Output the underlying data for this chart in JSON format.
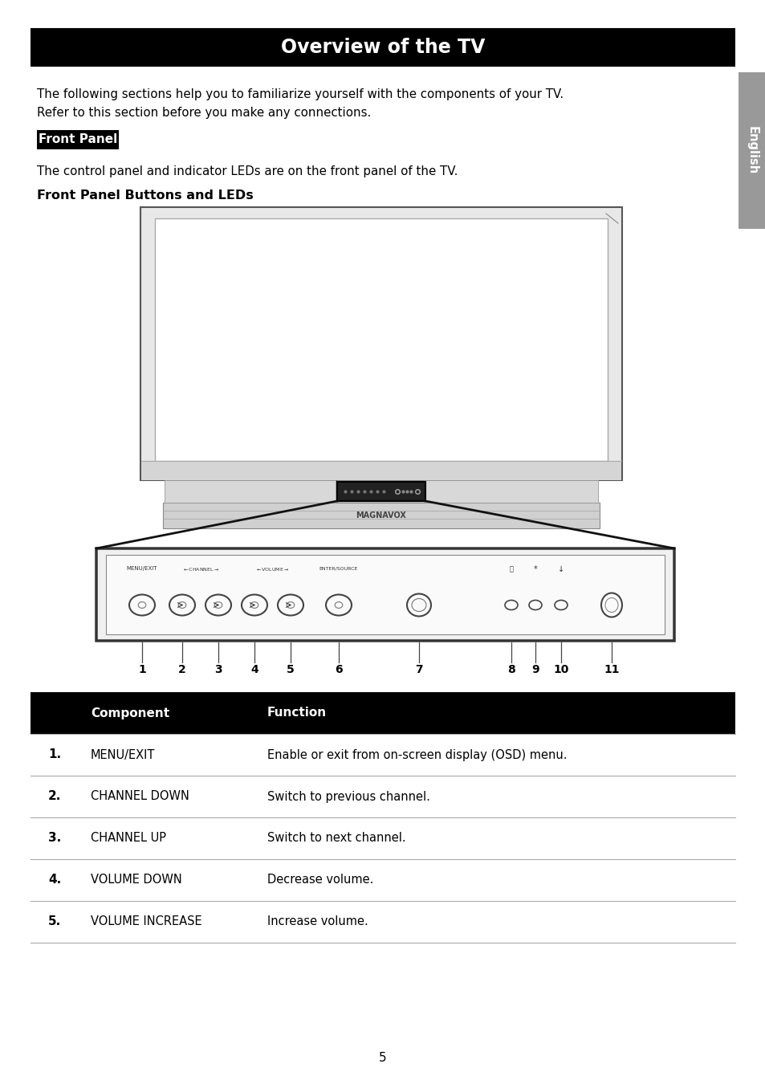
{
  "title": "Overview of the TV",
  "title_bg": "#000000",
  "title_color": "#ffffff",
  "page_bg": "#ffffff",
  "intro_line1": "The following sections help you to familiarize yourself with the components of your TV.",
  "intro_line2": "Refer to this section before you make any connections.",
  "section_label": "Front Panel",
  "section_label_bg": "#000000",
  "section_label_color": "#ffffff",
  "section_body": "The control panel and indicator LEDs are on the front panel of the TV.",
  "subsection_label": "Front Panel Buttons and LEDs",
  "english_tab_bg": "#999999",
  "english_tab_color": "#ffffff",
  "english_tab_text": "English",
  "table_header_bg": "#000000",
  "table_header_color": "#ffffff",
  "table_col1_header": "Component",
  "table_col2_header": "Function",
  "table_rows": [
    {
      "num": "1.",
      "component": "MENU/EXIT",
      "function": "Enable or exit from on-screen display (OSD) menu."
    },
    {
      "num": "2.",
      "component": "CHANNEL DOWN",
      "function": "Switch to previous channel."
    },
    {
      "num": "3.",
      "component": "CHANNEL UP",
      "function": "Switch to next channel."
    },
    {
      "num": "4.",
      "component": "VOLUME DOWN",
      "function": "Decrease volume."
    },
    {
      "num": "5.",
      "component": "VOLUME INCREASE",
      "function": "Increase volume."
    }
  ],
  "page_number": "5"
}
